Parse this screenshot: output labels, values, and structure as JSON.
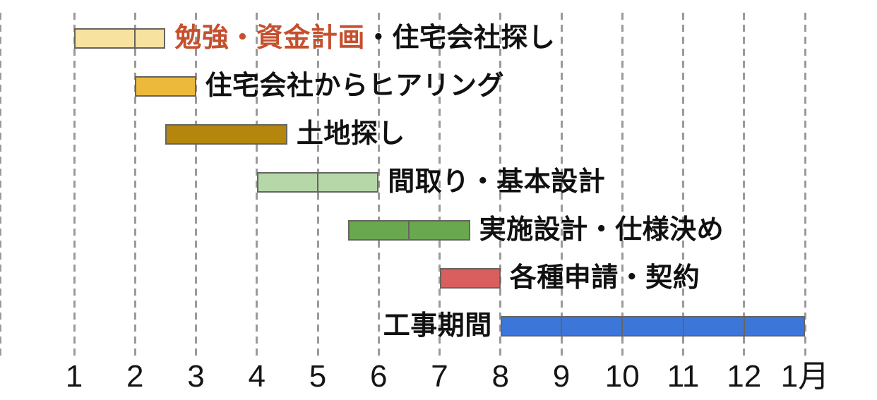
{
  "chart_data": {
    "type": "bar",
    "subtype": "gantt-timeline",
    "title": "",
    "xlabel": "",
    "ylabel": "",
    "grid": "dashed-vertical",
    "x_axis": {
      "unit": "month",
      "tick_labels": [
        "1",
        "2",
        "3",
        "4",
        "5",
        "6",
        "7",
        "8",
        "9",
        "10",
        "11",
        "12",
        "1月"
      ],
      "tick_values": [
        1,
        2,
        3,
        4,
        5,
        6,
        7,
        8,
        9,
        10,
        11,
        12,
        13
      ]
    },
    "tasks": [
      {
        "label_parts": [
          {
            "text": "勉強・資金計画",
            "color": "#c5502e"
          },
          {
            "text": "・住宅会社探し",
            "color": "#111111"
          }
        ],
        "label": "勉強・資金計画・住宅会社探し",
        "start": 1,
        "end": 2.5,
        "dividers": [
          2
        ],
        "color": "#f8e2a0",
        "label_side": "right"
      },
      {
        "label": "住宅会社からヒアリング",
        "start": 2,
        "end": 3,
        "dividers": [],
        "color": "#ecb93c",
        "label_side": "right"
      },
      {
        "label": "土地探し",
        "start": 2.5,
        "end": 4.5,
        "dividers": [],
        "color": "#b4860d",
        "label_side": "right"
      },
      {
        "label": "間取り・基本設計",
        "start": 4,
        "end": 6,
        "dividers": [
          5
        ],
        "color": "#b6d7a8",
        "label_side": "right"
      },
      {
        "label": "実施設計・仕様決め",
        "start": 5.5,
        "end": 7.5,
        "dividers": [
          6.5
        ],
        "color": "#69a84f",
        "label_side": "right"
      },
      {
        "label": "各種申請・契約",
        "start": 7,
        "end": 8,
        "dividers": [],
        "color": "#d95f5f",
        "label_side": "right"
      },
      {
        "label": "工事期間",
        "start": 8,
        "end": 13,
        "dividers": [
          9,
          10,
          11,
          12
        ],
        "color": "#3d76d9",
        "label_side": "left"
      }
    ],
    "colors": {
      "gridline": "#9a9a9a",
      "bar_border": "#666460",
      "text": "#111111",
      "highlight_text": "#c5502e",
      "background": "#ffffff"
    }
  }
}
